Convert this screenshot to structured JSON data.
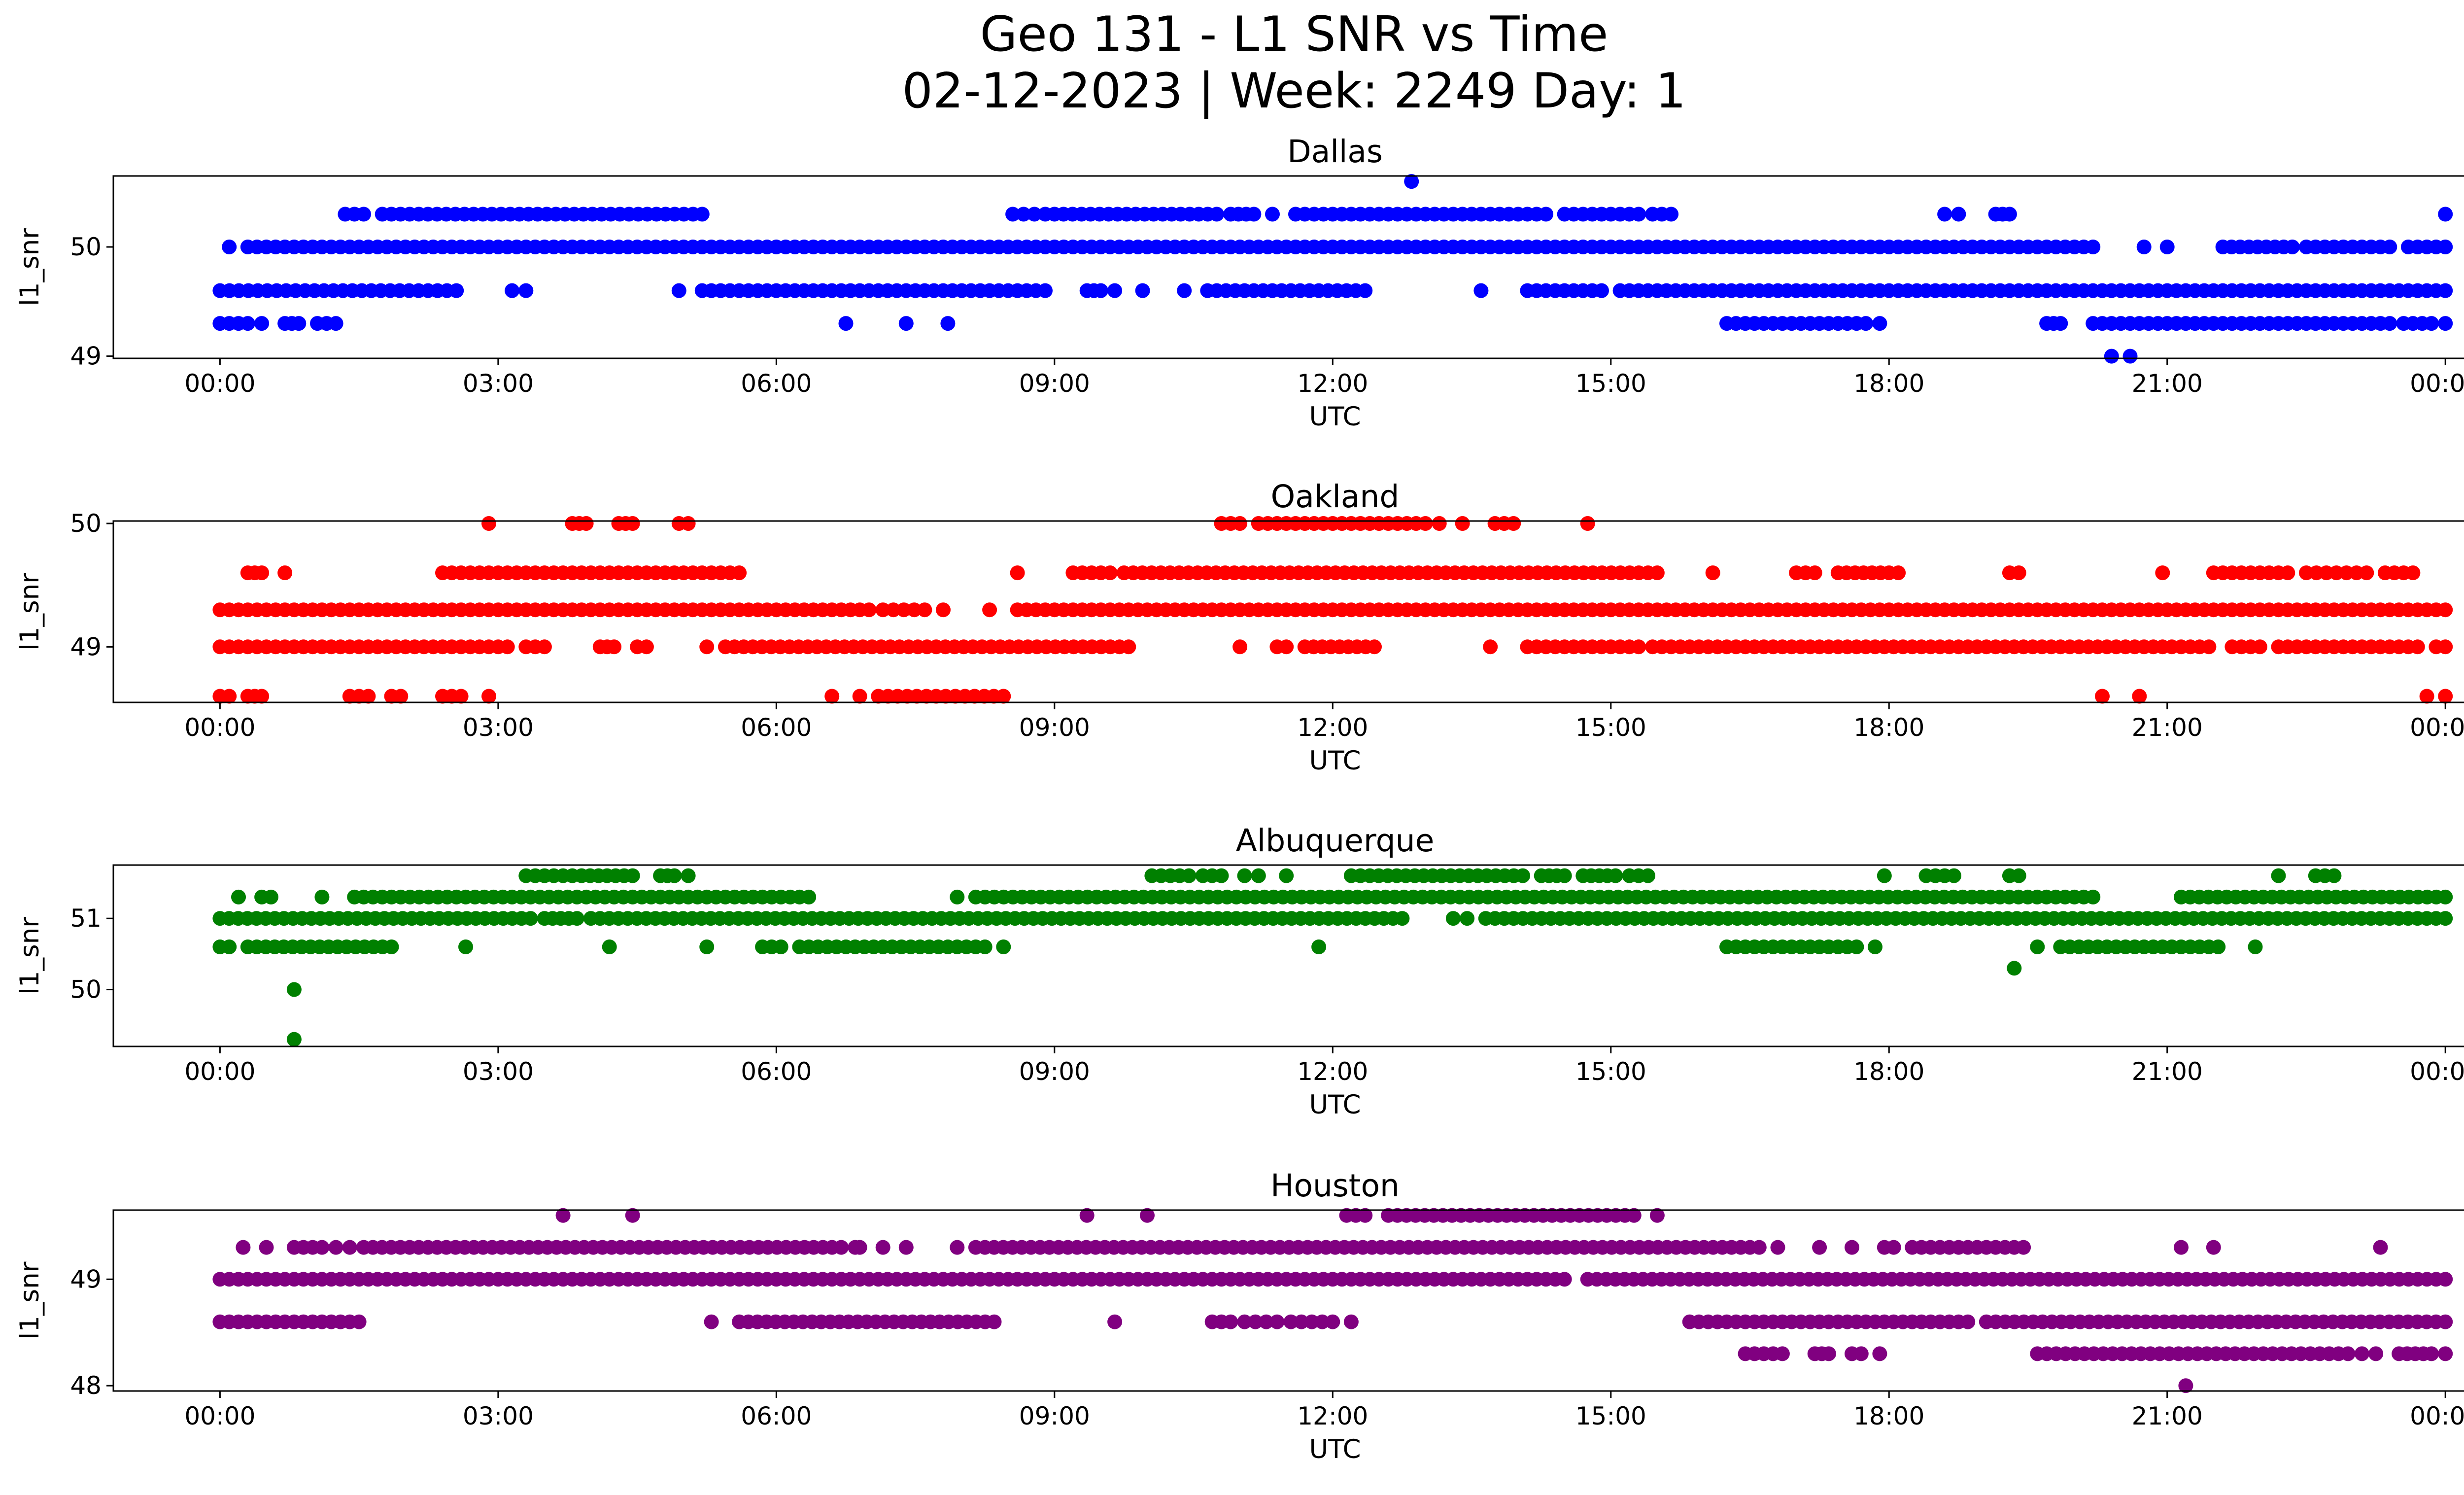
{
  "figure": {
    "title_line1": "Geo 131 - L1 SNR vs Time",
    "title_line2": "02-12-2023 | Week: 2249 Day: 1"
  },
  "chart_data": [
    {
      "type": "scatter",
      "title": "Dallas",
      "xlabel": "UTC",
      "ylabel": "l1_snr",
      "color": "#0000ff",
      "xticks": [
        "00:00",
        "03:00",
        "06:00",
        "09:00",
        "12:00",
        "15:00",
        "18:00",
        "21:00",
        "00:00"
      ],
      "xlim_hours": [
        -1.15,
        25.2
      ],
      "yticks": [
        49,
        50
      ],
      "ylim": [
        48.98,
        50.65
      ],
      "series": [
        {
          "y": 50.6,
          "segments": [
            [
              12.85,
              12.85
            ]
          ]
        },
        {
          "y": 50.3,
          "segments": [
            [
              1.35,
              1.55
            ],
            [
              1.75,
              5.2
            ],
            [
              8.55,
              8.9
            ],
            [
              9.0,
              10.75
            ],
            [
              10.9,
              11.15
            ],
            [
              11.35,
              11.35
            ],
            [
              11.6,
              12.5
            ],
            [
              12.6,
              14.3
            ],
            [
              14.5,
              15.3
            ],
            [
              15.45,
              15.65
            ],
            [
              18.6,
              18.75
            ],
            [
              19.15,
              19.3
            ],
            [
              24.0,
              24.0
            ]
          ]
        },
        {
          "y": 50.0,
          "segments": [
            [
              0.1,
              0.1
            ],
            [
              0.3,
              20.2
            ],
            [
              20.75,
              20.75
            ],
            [
              21.0,
              21.0
            ],
            [
              21.6,
              22.35
            ],
            [
              22.5,
              23.4
            ],
            [
              23.6,
              24.0
            ]
          ]
        },
        {
          "y": 49.6,
          "segments": [
            [
              0.0,
              2.55
            ],
            [
              3.15,
              3.3
            ],
            [
              4.95,
              4.95
            ],
            [
              5.2,
              8.9
            ],
            [
              9.35,
              9.5
            ],
            [
              9.65,
              9.65
            ],
            [
              9.95,
              9.95
            ],
            [
              10.4,
              10.4
            ],
            [
              10.65,
              10.95
            ],
            [
              11.05,
              12.35
            ],
            [
              13.6,
              13.6
            ],
            [
              14.1,
              14.9
            ],
            [
              15.1,
              24.0
            ]
          ]
        },
        {
          "y": 49.3,
          "segments": [
            [
              0.0,
              0.3
            ],
            [
              0.45,
              0.45
            ],
            [
              0.7,
              0.85
            ],
            [
              1.05,
              1.25
            ],
            [
              6.75,
              6.75
            ],
            [
              7.4,
              7.4
            ],
            [
              7.85,
              7.85
            ],
            [
              16.25,
              17.75
            ],
            [
              17.9,
              17.9
            ],
            [
              19.7,
              19.85
            ],
            [
              20.2,
              23.4
            ],
            [
              23.55,
              23.85
            ],
            [
              24.0,
              24.0
            ]
          ]
        },
        {
          "y": 49.0,
          "segments": [
            [
              20.4,
              20.4
            ],
            [
              20.6,
              20.6
            ]
          ]
        }
      ]
    },
    {
      "type": "scatter",
      "title": "Oakland",
      "xlabel": "UTC",
      "ylabel": "l1_snr",
      "color": "#ff0000",
      "xticks": [
        "00:00",
        "03:00",
        "06:00",
        "09:00",
        "12:00",
        "15:00",
        "18:00",
        "21:00",
        "00:00"
      ],
      "xlim_hours": [
        -1.15,
        25.2
      ],
      "yticks": [
        49,
        50
      ],
      "ylim": [
        48.55,
        50.02
      ],
      "series": [
        {
          "y": 50.0,
          "segments": [
            [
              2.9,
              2.9
            ],
            [
              3.8,
              3.95
            ],
            [
              4.3,
              4.45
            ],
            [
              4.95,
              5.05
            ],
            [
              10.8,
              11.0
            ],
            [
              11.2,
              13.0
            ],
            [
              13.15,
              13.15
            ],
            [
              13.4,
              13.4
            ],
            [
              13.75,
              13.95
            ],
            [
              14.75,
              14.75
            ]
          ]
        },
        {
          "y": 49.6,
          "segments": [
            [
              0.3,
              0.45
            ],
            [
              0.7,
              0.7
            ],
            [
              2.4,
              5.6
            ],
            [
              8.6,
              8.6
            ],
            [
              9.2,
              9.6
            ],
            [
              9.75,
              15.5
            ],
            [
              16.1,
              16.1
            ],
            [
              17.0,
              17.2
            ],
            [
              17.45,
              18.0
            ],
            [
              18.1,
              18.1
            ],
            [
              19.3,
              19.4
            ],
            [
              20.95,
              20.95
            ],
            [
              21.5,
              22.3
            ],
            [
              22.5,
              23.15
            ],
            [
              23.35,
              23.65
            ]
          ]
        },
        {
          "y": 49.3,
          "segments": [
            [
              0.0,
              7.0
            ],
            [
              7.15,
              7.6
            ],
            [
              7.8,
              7.8
            ],
            [
              8.3,
              8.3
            ],
            [
              8.6,
              24.0
            ]
          ]
        },
        {
          "y": 49.0,
          "segments": [
            [
              0.0,
              3.1
            ],
            [
              3.3,
              3.5
            ],
            [
              4.1,
              4.25
            ],
            [
              4.5,
              4.5
            ],
            [
              4.6,
              4.6
            ],
            [
              5.25,
              5.25
            ],
            [
              5.45,
              9.8
            ],
            [
              11.0,
              11.0
            ],
            [
              11.4,
              11.5
            ],
            [
              11.7,
              12.45
            ],
            [
              13.7,
              13.7
            ],
            [
              14.1,
              15.3
            ],
            [
              15.45,
              21.45
            ],
            [
              21.7,
              22.0
            ],
            [
              22.2,
              23.7
            ],
            [
              23.9,
              24.0
            ]
          ]
        },
        {
          "y": 48.6,
          "segments": [
            [
              0.0,
              0.1
            ],
            [
              0.3,
              0.45
            ],
            [
              1.4,
              1.6
            ],
            [
              1.85,
              1.95
            ],
            [
              2.4,
              2.6
            ],
            [
              2.9,
              2.9
            ],
            [
              6.6,
              6.6
            ],
            [
              6.9,
              6.9
            ],
            [
              7.1,
              8.45
            ],
            [
              20.3,
              20.3
            ],
            [
              20.7,
              20.7
            ],
            [
              23.8,
              23.8
            ],
            [
              24.0,
              24.0
            ]
          ]
        }
      ]
    },
    {
      "type": "scatter",
      "title": "Albuquerque",
      "xlabel": "UTC",
      "ylabel": "l1_snr",
      "color": "#008000",
      "xticks": [
        "00:00",
        "03:00",
        "06:00",
        "09:00",
        "12:00",
        "15:00",
        "18:00",
        "21:00",
        "00:00"
      ],
      "xlim_hours": [
        -1.15,
        25.2
      ],
      "yticks": [
        50,
        51
      ],
      "ylim": [
        49.2,
        51.75
      ],
      "series": [
        {
          "y": 51.6,
          "segments": [
            [
              3.3,
              3.8
            ],
            [
              3.9,
              4.45
            ],
            [
              4.75,
              4.9
            ],
            [
              5.05,
              5.05
            ],
            [
              10.05,
              10.45
            ],
            [
              10.6,
              10.8
            ],
            [
              11.05,
              11.2
            ],
            [
              11.5,
              11.5
            ],
            [
              12.2,
              12.3
            ],
            [
              12.4,
              14.05
            ],
            [
              14.25,
              14.5
            ],
            [
              14.7,
              15.05
            ],
            [
              15.2,
              15.4
            ],
            [
              17.95,
              17.95
            ],
            [
              18.4,
              18.7
            ],
            [
              19.3,
              19.4
            ],
            [
              22.2,
              22.2
            ],
            [
              22.6,
              22.8
            ]
          ]
        },
        {
          "y": 51.3,
          "segments": [
            [
              0.2,
              0.2
            ],
            [
              0.45,
              0.55
            ],
            [
              1.1,
              1.1
            ],
            [
              1.45,
              6.35
            ],
            [
              7.95,
              7.95
            ],
            [
              8.15,
              20.2
            ],
            [
              21.15,
              24.0
            ]
          ]
        },
        {
          "y": 51.0,
          "segments": [
            [
              0.0,
              3.35
            ],
            [
              3.5,
              3.85
            ],
            [
              4.0,
              12.75
            ],
            [
              13.3,
              13.45
            ],
            [
              13.65,
              24.0
            ]
          ]
        },
        {
          "y": 50.6,
          "segments": [
            [
              0.0,
              0.1
            ],
            [
              0.3,
              1.85
            ],
            [
              2.65,
              2.65
            ],
            [
              4.2,
              4.2
            ],
            [
              5.25,
              5.25
            ],
            [
              5.85,
              6.05
            ],
            [
              6.25,
              8.25
            ],
            [
              8.45,
              8.45
            ],
            [
              11.85,
              11.85
            ],
            [
              16.25,
              17.65
            ],
            [
              17.85,
              17.85
            ],
            [
              19.6,
              19.6
            ],
            [
              19.85,
              21.55
            ],
            [
              21.95,
              21.95
            ]
          ]
        },
        {
          "y": 50.3,
          "segments": [
            [
              19.35,
              19.35
            ]
          ]
        },
        {
          "y": 50.0,
          "segments": [
            [
              0.8,
              0.8
            ]
          ]
        },
        {
          "y": 49.3,
          "segments": [
            [
              0.8,
              0.8
            ]
          ]
        }
      ]
    },
    {
      "type": "scatter",
      "title": "Houston",
      "xlabel": "UTC",
      "ylabel": "l1_snr",
      "color": "#800080",
      "xticks": [
        "00:00",
        "03:00",
        "06:00",
        "09:00",
        "12:00",
        "15:00",
        "18:00",
        "21:00",
        "00:00"
      ],
      "xlim_hours": [
        -1.15,
        25.2
      ],
      "yticks": [
        48,
        49
      ],
      "ylim": [
        47.95,
        49.65
      ],
      "series": [
        {
          "y": 49.6,
          "segments": [
            [
              3.7,
              3.7
            ],
            [
              4.45,
              4.45
            ],
            [
              9.35,
              9.35
            ],
            [
              10.0,
              10.0
            ],
            [
              12.15,
              12.35
            ],
            [
              12.6,
              15.25
            ],
            [
              15.5,
              15.5
            ]
          ]
        },
        {
          "y": 49.3,
          "segments": [
            [
              0.25,
              0.25
            ],
            [
              0.5,
              0.5
            ],
            [
              0.8,
              1.1
            ],
            [
              1.25,
              1.4
            ],
            [
              1.55,
              6.7
            ],
            [
              6.85,
              6.9
            ],
            [
              7.15,
              7.15
            ],
            [
              7.4,
              7.4
            ],
            [
              7.95,
              7.95
            ],
            [
              8.15,
              16.6
            ],
            [
              16.8,
              16.8
            ],
            [
              17.25,
              17.25
            ],
            [
              17.6,
              17.6
            ],
            [
              17.95,
              18.05
            ],
            [
              18.25,
              19.25
            ],
            [
              19.35,
              19.45
            ],
            [
              21.15,
              21.15
            ],
            [
              21.5,
              21.5
            ],
            [
              23.3,
              23.3
            ]
          ]
        },
        {
          "y": 49.0,
          "segments": [
            [
              0.0,
              14.5
            ],
            [
              14.75,
              24.0
            ]
          ]
        },
        {
          "y": 48.6,
          "segments": [
            [
              0.0,
              1.5
            ],
            [
              5.3,
              5.3
            ],
            [
              5.6,
              8.35
            ],
            [
              9.65,
              9.65
            ],
            [
              10.7,
              10.9
            ],
            [
              11.05,
              11.4
            ],
            [
              11.55,
              12.0
            ],
            [
              12.2,
              12.2
            ],
            [
              15.85,
              18.85
            ],
            [
              19.05,
              24.0
            ]
          ]
        },
        {
          "y": 48.3,
          "segments": [
            [
              16.45,
              16.85
            ],
            [
              17.2,
              17.35
            ],
            [
              17.6,
              17.7
            ],
            [
              17.9,
              17.9
            ],
            [
              19.6,
              22.95
            ],
            [
              23.1,
              23.25
            ],
            [
              23.5,
              23.85
            ],
            [
              24.0,
              24.0
            ]
          ]
        },
        {
          "y": 48.0,
          "segments": [
            [
              21.2,
              21.2
            ]
          ]
        }
      ]
    }
  ]
}
